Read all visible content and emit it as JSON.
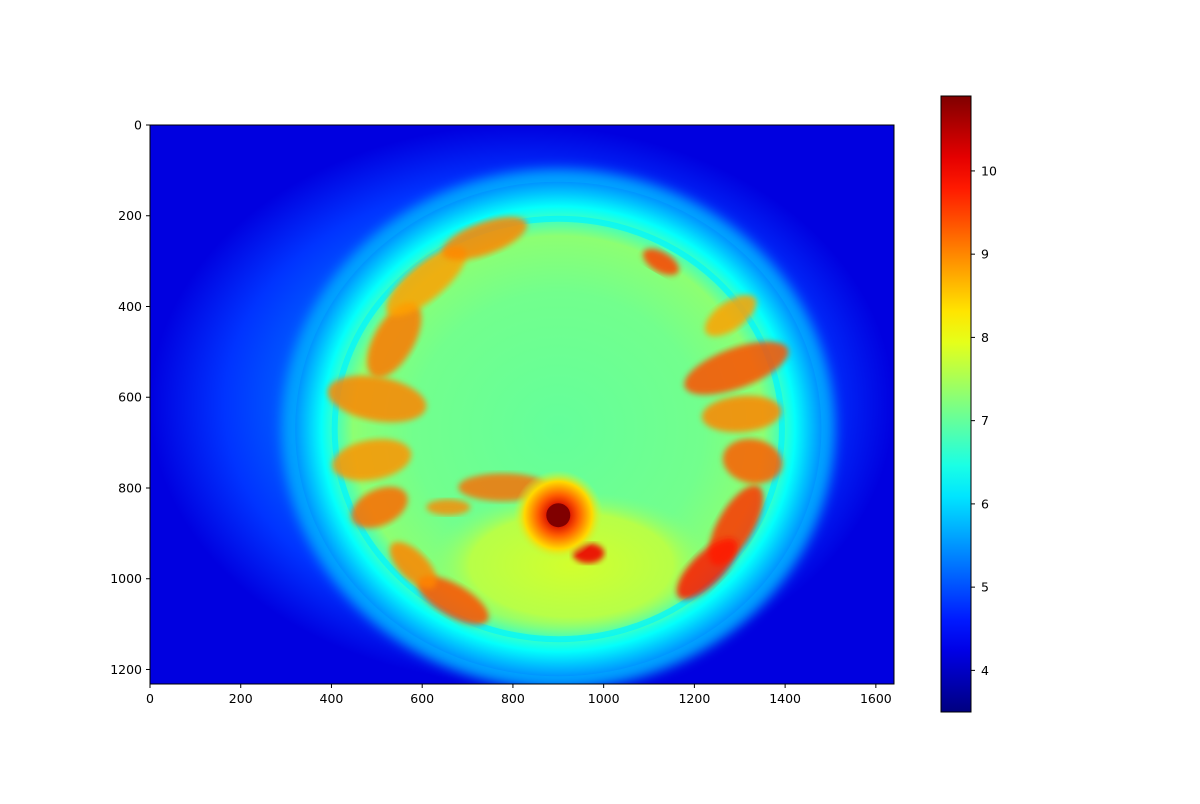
{
  "chart_data": {
    "type": "heatmap",
    "title": "",
    "xlabel": "",
    "ylabel": "",
    "xlim": [
      0,
      1640
    ],
    "ylim": [
      1232,
      0
    ],
    "x_ticks": [
      0,
      200,
      400,
      600,
      800,
      1000,
      1200,
      1400,
      1600
    ],
    "y_ticks": [
      0,
      200,
      400,
      600,
      800,
      1000,
      1200
    ],
    "colormap": "jet",
    "colorbar": {
      "range": [
        3.5,
        10.9
      ],
      "ticks": [
        4,
        5,
        6,
        7,
        8,
        9,
        10
      ]
    },
    "image_description_values": {
      "fisheye_center": [
        900,
        670
      ],
      "fisheye_radius": [
        580,
        545
      ],
      "sun_position": [
        900,
        860
      ],
      "sun_peak_value": 10.9,
      "sky_center_value": 7.0,
      "outer_background_value": 4.6,
      "cloud_value": 9.0
    }
  }
}
